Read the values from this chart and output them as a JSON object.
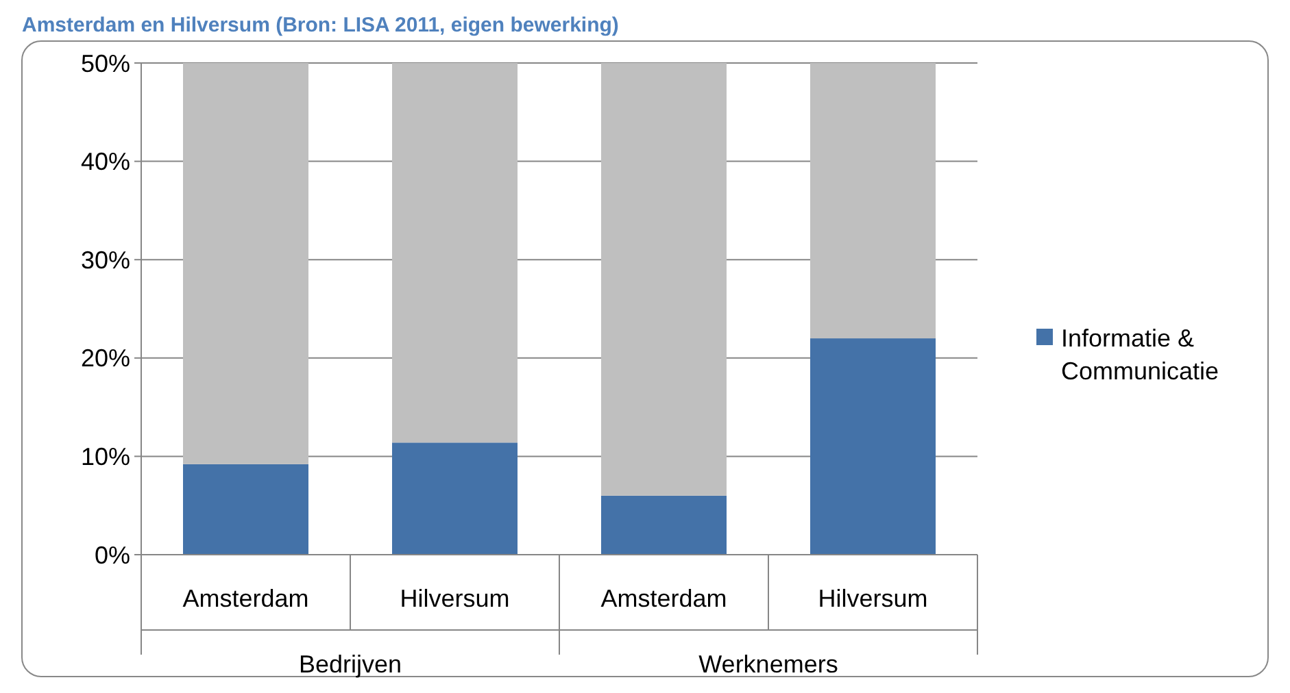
{
  "chart_data": {
    "type": "bar",
    "title": "Amsterdam en Hilversum  (Bron: LISA 2011, eigen bewerking)",
    "categories": [
      "Amsterdam",
      "Hilversum",
      "Amsterdam",
      "Hilversum"
    ],
    "annotations": [
      "Bedrijven",
      "Werknemers"
    ],
    "stacked": true,
    "series": [
      {
        "name": "Informatie & Communicatie",
        "color": "#4472a8",
        "values": [
          9.2,
          11.4,
          6.0,
          22.0
        ]
      },
      {
        "color": "#bfbfbf",
        "values": [
          40.8,
          38.6,
          44.0,
          28.0
        ]
      }
    ],
    "ylim": [
      0,
      50
    ],
    "yticks": [
      {
        "value": 0,
        "label": "0%"
      },
      {
        "value": 10,
        "label": "10%"
      },
      {
        "value": 20,
        "label": "20%"
      },
      {
        "value": 30,
        "label": "30%"
      },
      {
        "value": 40,
        "label": "40%"
      },
      {
        "value": 50,
        "label": "50%"
      }
    ],
    "grid": "y",
    "legend": "right"
  }
}
